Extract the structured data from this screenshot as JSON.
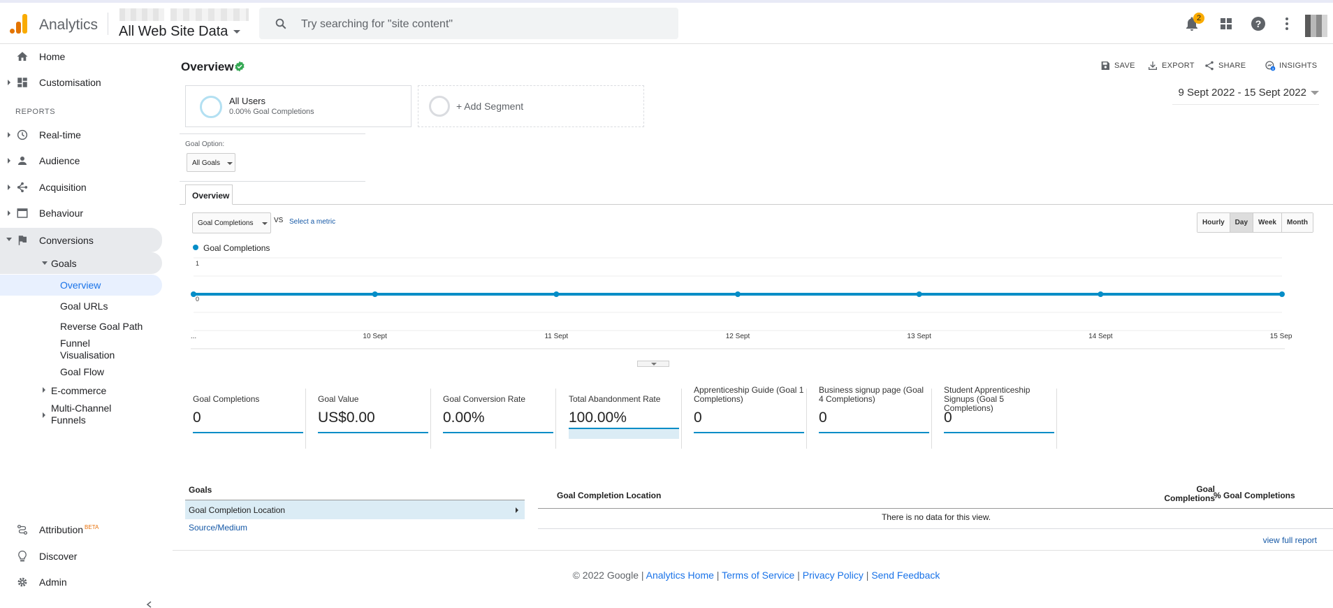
{
  "topbar": {
    "app_name": "Analytics",
    "property": "All Web Site Data",
    "search_placeholder": "Try searching for \"site content\"",
    "notification_count": "2"
  },
  "sidebar": {
    "home": "Home",
    "customisation": "Customisation",
    "reports_header": "REPORTS",
    "realtime": "Real-time",
    "audience": "Audience",
    "acquisition": "Acquisition",
    "behaviour": "Behaviour",
    "conversions": "Conversions",
    "goals": "Goals",
    "goals_sub": [
      "Overview",
      "Goal URLs",
      "Reverse Goal Path",
      "Funnel Visualisation",
      "Goal Flow"
    ],
    "ecommerce": "E-commerce",
    "multichannel": "Multi-Channel Funnels",
    "attribution": "Attribution",
    "attribution_badge": "BETA",
    "discover": "Discover",
    "admin": "Admin"
  },
  "page": {
    "title": "Overview",
    "actions": {
      "save": "SAVE",
      "export": "EXPORT",
      "share": "SHARE",
      "insights": "INSIGHTS"
    },
    "segment_title": "All Users",
    "segment_sub": "0.00% Goal Completions",
    "add_segment": "+ Add Segment",
    "date_range": "9 Sept 2022 - 15 Sept 2022",
    "goal_option_label": "Goal Option:",
    "goal_option_value": "All Goals",
    "tab": "Overview",
    "metric_select": "Goal Completions",
    "vs": "VS",
    "select_metric": "Select a metric",
    "periods": [
      "Hourly",
      "Day",
      "Week",
      "Month"
    ],
    "active_period": "Day"
  },
  "chart_data": {
    "type": "line",
    "series": [
      {
        "name": "Goal Completions",
        "values": [
          0,
          0,
          0,
          0,
          0,
          0,
          0
        ]
      }
    ],
    "x": [
      "...",
      "10 Sept",
      "11 Sept",
      "12 Sept",
      "13 Sept",
      "14 Sept",
      "15 Sept"
    ],
    "y_ticks": [
      "1",
      "0"
    ],
    "ylim": [
      0,
      1
    ],
    "color": "#058dc7"
  },
  "scorecards": [
    {
      "title": "Goal Completions",
      "value": "0"
    },
    {
      "title": "Goal Value",
      "value": "US$0.00"
    },
    {
      "title": "Goal Conversion Rate",
      "value": "0.00%"
    },
    {
      "title": "Total Abandonment Rate",
      "value": "100.00%"
    },
    {
      "title": "Apprenticeship Guide (Goal 1 Completions)",
      "value": "0"
    },
    {
      "title": "Business signup page (Goal 4 Completions)",
      "value": "0"
    },
    {
      "title": "Student Apprenticeship Signups (Goal 5 Completions)",
      "value": "0"
    }
  ],
  "report": {
    "goals_header": "Goals",
    "row_selected": "Goal Completion Location",
    "row_link": "Source/Medium",
    "col1": "Goal Completion Location",
    "col2": "Goal Completions",
    "col3": "% Goal Completions",
    "no_data": "There is no data for this view.",
    "view_full": "view full report"
  },
  "footer": {
    "copyright": "© 2022 Google",
    "links": [
      "Analytics Home",
      "Terms of Service",
      "Privacy Policy",
      "Send Feedback"
    ]
  }
}
